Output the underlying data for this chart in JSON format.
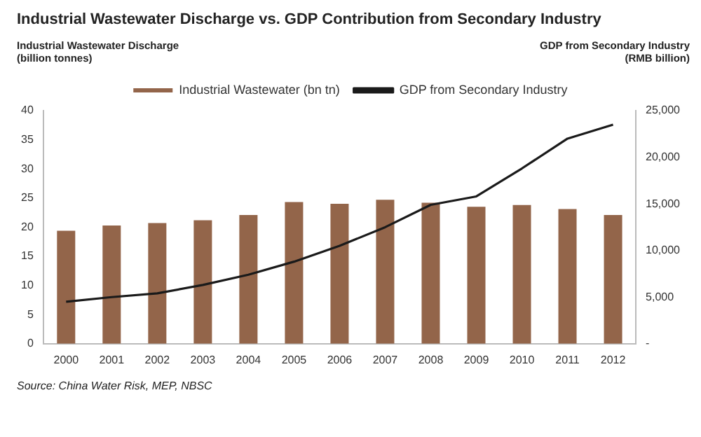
{
  "chart_data": {
    "type": "bar",
    "title": "Industrial Wastewater Discharge vs.  GDP Contribution from Secondary Industry",
    "ylabel": "Industrial Wastewater Discharge (billion tonnes)",
    "y2label": "GDP from Secondary Industry (RMB billion)",
    "categories": [
      "2000",
      "2001",
      "2002",
      "2003",
      "2004",
      "2005",
      "2006",
      "2007",
      "2008",
      "2009",
      "2010",
      "2011",
      "2012"
    ],
    "series": [
      {
        "name": "Industrial Wastewater (bn tn)",
        "color": "#93654a",
        "values": [
          19.4,
          20.3,
          20.7,
          21.2,
          22.1,
          24.3,
          24.0,
          24.7,
          24.2,
          23.5,
          23.8,
          23.1,
          22.1
        ]
      },
      {
        "name": "GDP from Secondary Industry",
        "type": "line",
        "axis": "y2",
        "color": "#1a1a1a",
        "marker": "none",
        "values": [
          4500,
          5000,
          5400,
          6300,
          7400,
          8800,
          10500,
          12500,
          14900,
          15800,
          18800,
          22000,
          23500
        ]
      }
    ],
    "ylim": [
      0,
      40
    ],
    "yticks": [
      0,
      5,
      10,
      15,
      20,
      25,
      30,
      35,
      40
    ],
    "y2lim": [
      0,
      25000
    ],
    "y2ticks": [
      {
        "value": 0,
        "label": "-"
      },
      {
        "value": 5000,
        "label": "5,000"
      },
      {
        "value": 10000,
        "label": "10,000"
      },
      {
        "value": 15000,
        "label": "15,000"
      },
      {
        "value": 20000,
        "label": "20,000"
      },
      {
        "value": 25000,
        "label": "25,000"
      }
    ],
    "grid": false,
    "legend": "top",
    "annotations": [
      "Source: China Water Risk, MEP, NBSC"
    ]
  }
}
